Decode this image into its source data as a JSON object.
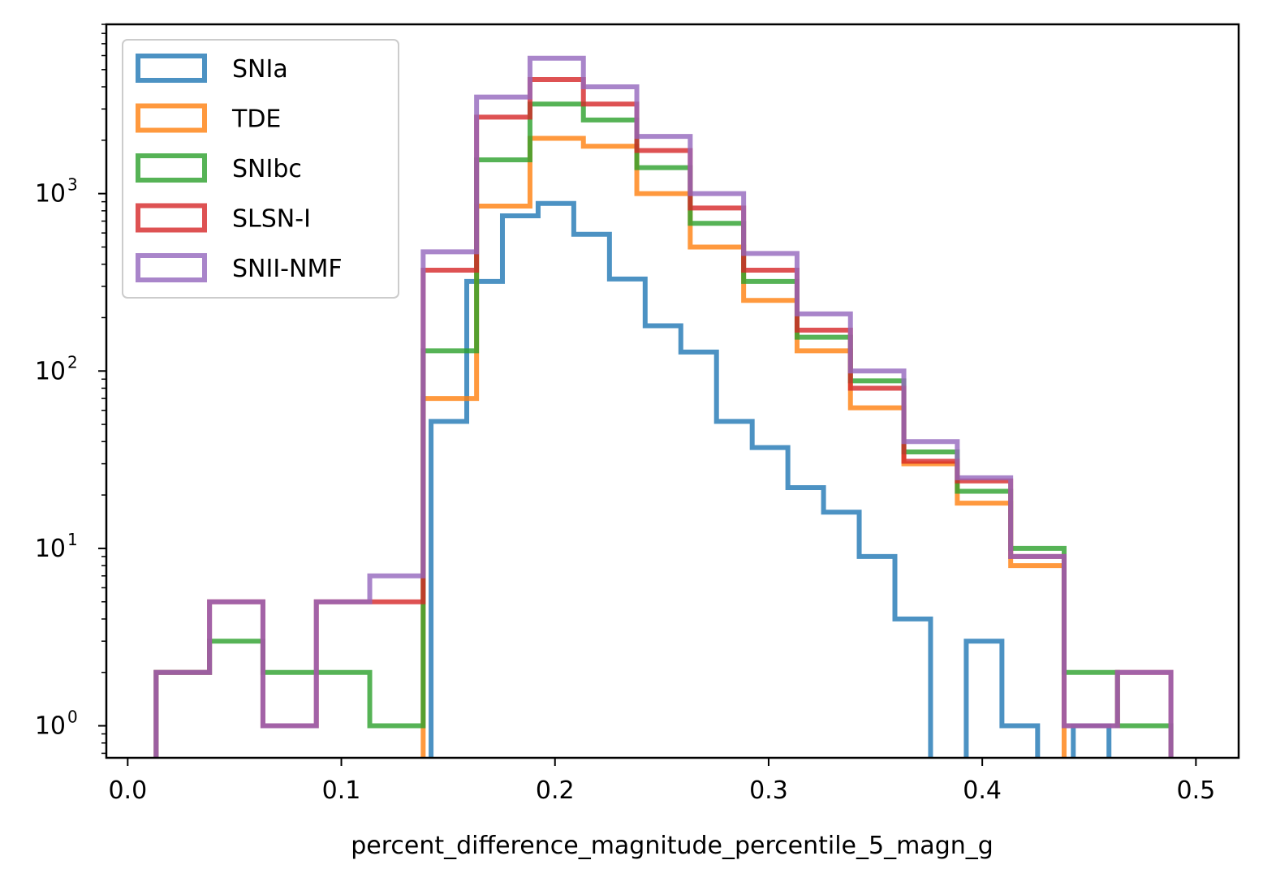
{
  "chart_data": {
    "type": "histogram-step",
    "xlabel": "percent_difference_magnitude_percentile_5_magn_g",
    "ylabel": "",
    "yscale": "log",
    "xlim": [
      -0.01,
      0.52
    ],
    "ylim": [
      0.66,
      9000
    ],
    "x_ticks": [
      0.0,
      0.1,
      0.2,
      0.3,
      0.4,
      0.5
    ],
    "x_tick_labels": [
      "0.0",
      "0.1",
      "0.2",
      "0.3",
      "0.4",
      "0.5"
    ],
    "y_ticks": [
      {
        "value": 1,
        "base": "10",
        "exp": "0"
      },
      {
        "value": 10,
        "base": "10",
        "exp": "1"
      },
      {
        "value": 100,
        "base": "10",
        "exp": "2"
      },
      {
        "value": 1000,
        "base": "10",
        "exp": "3"
      }
    ],
    "legend_position": "upper-left",
    "grid": false,
    "series": [
      {
        "name": "SNIa",
        "color": "#1f77b4",
        "bin_edges": [
          0.142,
          0.1587,
          0.1754,
          0.1921,
          0.2088,
          0.2255,
          0.2422,
          0.2589,
          0.2756,
          0.2923,
          0.309,
          0.3257,
          0.3424,
          0.3591,
          0.3758,
          0.3925,
          0.4092,
          0.4259,
          0.4426,
          0.4593,
          0.476
        ],
        "counts": [
          52,
          320,
          750,
          880,
          590,
          330,
          180,
          128,
          52,
          37,
          22,
          16,
          9,
          4,
          0,
          3,
          1,
          0,
          1,
          0
        ]
      },
      {
        "name": "TDE",
        "color": "#ff7f0e",
        "bin_edges": [
          0.0133,
          0.0383,
          0.0633,
          0.0883,
          0.1133,
          0.1383,
          0.1633,
          0.1883,
          0.2133,
          0.2383,
          0.2633,
          0.2883,
          0.3133,
          0.3383,
          0.3633,
          0.3883,
          0.4133,
          0.4383,
          0.4633,
          0.4883
        ],
        "counts": [
          0,
          0,
          0,
          0,
          0,
          70,
          850,
          2050,
          1850,
          1000,
          500,
          250,
          130,
          62,
          30,
          18,
          8,
          0,
          0
        ]
      },
      {
        "name": "SNIbc",
        "color": "#2ca02c",
        "bin_edges": [
          0.0133,
          0.0383,
          0.0633,
          0.0883,
          0.1133,
          0.1383,
          0.1633,
          0.1883,
          0.2133,
          0.2383,
          0.2633,
          0.2883,
          0.3133,
          0.3383,
          0.3633,
          0.3883,
          0.4133,
          0.4383,
          0.4633,
          0.4883
        ],
        "counts": [
          2,
          3,
          2,
          2,
          1,
          130,
          1550,
          3200,
          2600,
          1400,
          680,
          320,
          155,
          88,
          35,
          21,
          10,
          2,
          1
        ]
      },
      {
        "name": "SLSN-I",
        "color": "#d62728",
        "bin_edges": [
          0.0133,
          0.0383,
          0.0633,
          0.0883,
          0.1133,
          0.1383,
          0.1633,
          0.1883,
          0.2133,
          0.2383,
          0.2633,
          0.2883,
          0.3133,
          0.3383,
          0.3633,
          0.3883,
          0.4133,
          0.4383,
          0.4633,
          0.4883
        ],
        "counts": [
          2,
          5,
          1,
          5,
          5,
          370,
          2700,
          4400,
          3200,
          1750,
          830,
          370,
          170,
          80,
          31,
          24,
          9,
          1,
          2
        ]
      },
      {
        "name": "SNII-NMF",
        "color": "#9467bd",
        "bin_edges": [
          0.0133,
          0.0383,
          0.0633,
          0.0883,
          0.1133,
          0.1383,
          0.1633,
          0.1883,
          0.2133,
          0.2383,
          0.2633,
          0.2883,
          0.3133,
          0.3383,
          0.3633,
          0.3883,
          0.4133,
          0.4383,
          0.4633,
          0.4883
        ],
        "counts": [
          2,
          5,
          1,
          5,
          7,
          470,
          3500,
          5800,
          4000,
          2100,
          1000,
          460,
          210,
          100,
          40,
          25,
          9,
          1,
          2
        ]
      }
    ]
  }
}
